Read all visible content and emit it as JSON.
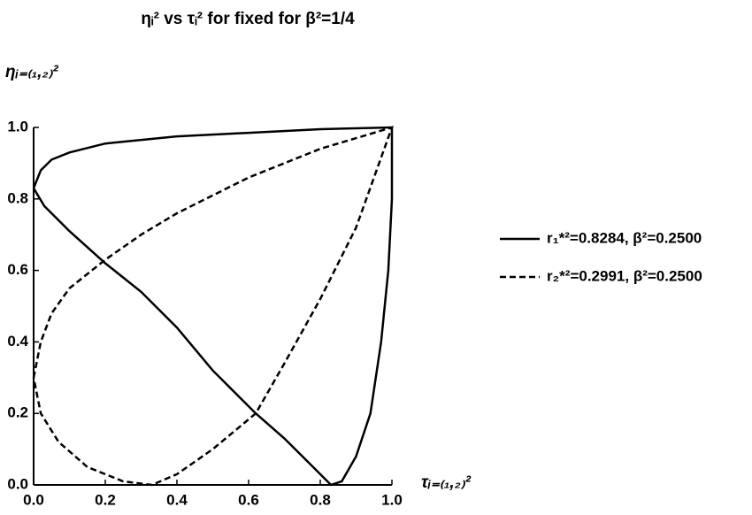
{
  "chart_data": {
    "type": "line",
    "title": "ηᵢ² vs τᵢ² for fixed for β²=1/4",
    "x_label": "τᵢ₌₍₁,₂₎²",
    "y_label": "ηᵢ₌₍₁,₂₎²",
    "xlim": [
      0,
      1
    ],
    "ylim": [
      0,
      1
    ],
    "xticks": [
      {
        "value": 0,
        "label": "0.0"
      },
      0.2,
      0.4,
      0.6,
      0.8,
      {
        "value": 1,
        "label": "1.0"
      }
    ],
    "yticks": [
      {
        "value": 0,
        "label": "0.0"
      },
      0.2,
      0.4,
      0.6,
      0.8,
      {
        "value": 1,
        "label": "1.0"
      }
    ],
    "legend": "right",
    "series": [
      {
        "name": "r₁*²=0.8284, β²=0.2500",
        "color": "#000000",
        "style": "solid",
        "x": [
          0,
          0.02,
          0.05,
          0.1,
          0.2,
          0.4,
          0.6,
          0.8,
          1,
          1,
          0.99,
          0.97,
          0.94,
          0.9,
          0.86,
          0.83,
          0.78,
          0.7,
          0.62,
          0.5,
          0.4,
          0.3,
          0.2,
          0.1,
          0.03,
          0
        ],
        "values": [
          0.83,
          0.88,
          0.91,
          0.93,
          0.955,
          0.975,
          0.985,
          0.995,
          1,
          0.8,
          0.6,
          0.4,
          0.2,
          0.08,
          0.01,
          0,
          0.05,
          0.13,
          0.2,
          0.32,
          0.44,
          0.54,
          0.62,
          0.71,
          0.78,
          0.83
        ]
      },
      {
        "name": "r₂*²=0.2991, β²=0.2500",
        "color": "#000000",
        "style": "dashed",
        "x": [
          0,
          0.02,
          0.05,
          0.1,
          0.2,
          0.3,
          0.4,
          0.5,
          0.6,
          0.7,
          0.8,
          0.9,
          1,
          0.9,
          0.8,
          0.7,
          0.62,
          0.5,
          0.4,
          0.33,
          0.25,
          0.15,
          0.07,
          0.02,
          0
        ],
        "values": [
          0.3,
          0.4,
          0.48,
          0.55,
          0.63,
          0.7,
          0.76,
          0.81,
          0.86,
          0.9,
          0.94,
          0.97,
          1,
          0.72,
          0.52,
          0.34,
          0.2,
          0.1,
          0.03,
          0,
          0.01,
          0.05,
          0.12,
          0.2,
          0.3
        ]
      }
    ]
  }
}
